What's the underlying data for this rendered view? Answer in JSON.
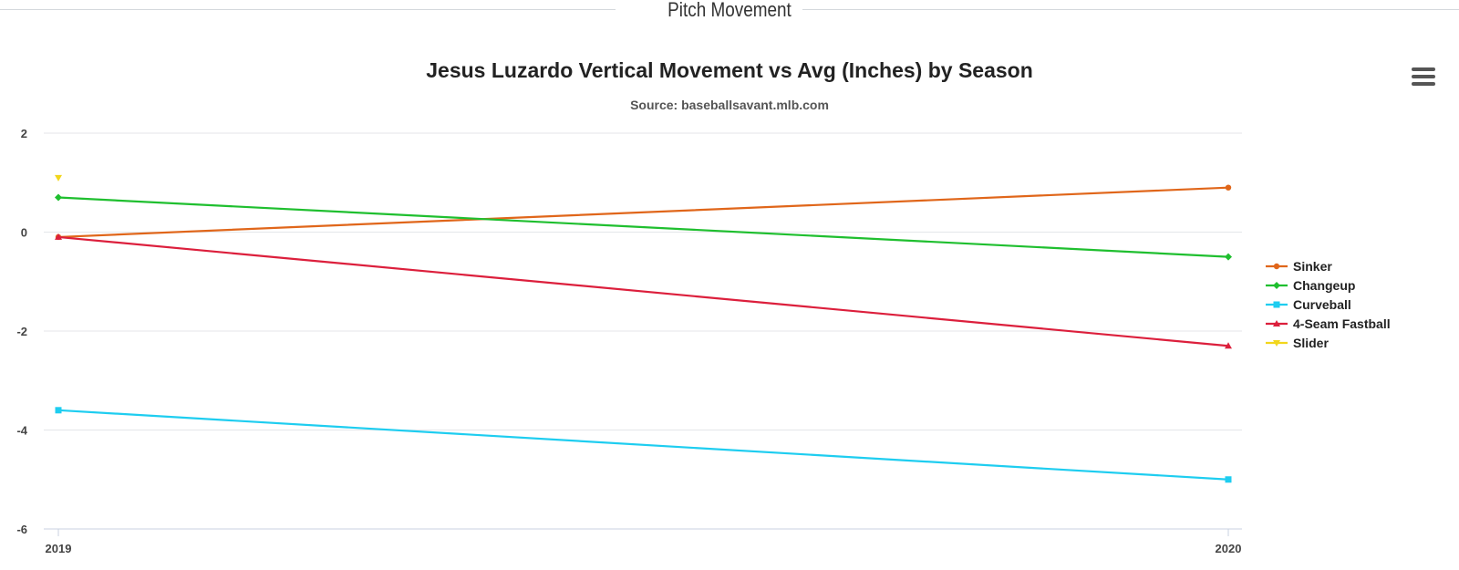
{
  "section": {
    "title": "Pitch Movement"
  },
  "menu": {
    "icon": "hamburger-menu-icon"
  },
  "chart_data": {
    "type": "line",
    "title": "Jesus Luzardo Vertical Movement vs Avg (Inches) by Season",
    "subtitle": "Source: baseballsavant.mlb.com",
    "xlabel": "",
    "ylabel": "",
    "categories": [
      "2019",
      "2020"
    ],
    "yticks": [
      "2",
      "0",
      "-2",
      "-4",
      "-6"
    ],
    "ylim": [
      -6,
      2
    ],
    "grid": true,
    "legend_position": "right",
    "series": [
      {
        "name": "Sinker",
        "color": "#e0661a",
        "marker": "circle",
        "values": [
          -0.1,
          0.9
        ]
      },
      {
        "name": "Changeup",
        "color": "#1fbf2f",
        "marker": "diamond",
        "values": [
          0.7,
          -0.5
        ]
      },
      {
        "name": "Curveball",
        "color": "#1ecdf0",
        "marker": "square",
        "values": [
          -3.6,
          -5.0
        ]
      },
      {
        "name": "4-Seam Fastball",
        "color": "#dc1f3c",
        "marker": "triangle",
        "values": [
          -0.1,
          -2.3
        ]
      },
      {
        "name": "Slider",
        "color": "#f2d61c",
        "marker": "triangle-down",
        "values": [
          1.1,
          null
        ]
      }
    ]
  }
}
